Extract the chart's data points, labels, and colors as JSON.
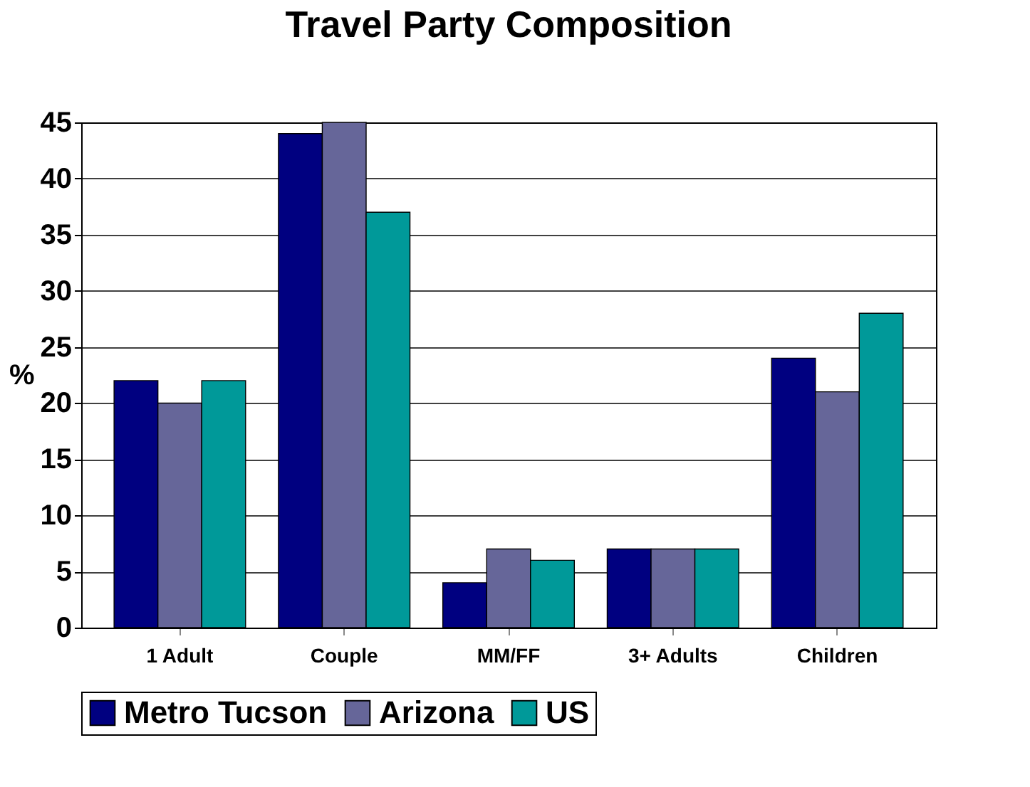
{
  "chart_data": {
    "type": "bar",
    "title": "Travel Party Composition",
    "ylabel": "%",
    "categories": [
      "1 Adult",
      "Couple",
      "MM/FF",
      "3+ Adults",
      "Children"
    ],
    "series": [
      {
        "name": "Metro Tucson",
        "color": "#000080",
        "values": [
          22,
          44,
          4,
          7,
          24
        ]
      },
      {
        "name": "Arizona",
        "color": "#666699",
        "values": [
          20,
          45,
          7,
          7,
          21
        ]
      },
      {
        "name": "US",
        "color": "#009999",
        "values": [
          22,
          37,
          6,
          7,
          28
        ]
      }
    ],
    "ylim": [
      0,
      45
    ],
    "yticks": [
      0,
      5,
      10,
      15,
      20,
      25,
      30,
      35,
      40,
      45
    ],
    "grid": "y",
    "legend": "bottom"
  }
}
